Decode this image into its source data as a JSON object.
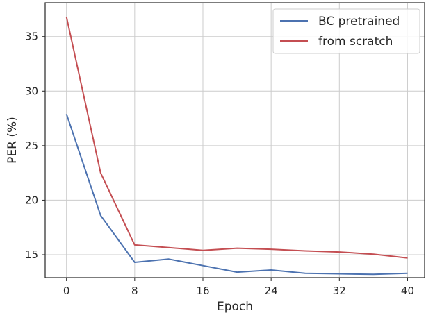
{
  "chart_data": {
    "type": "line",
    "title": "",
    "xlabel": "Epoch",
    "ylabel": "PER (%)",
    "xlim": [
      -2.5,
      42
    ],
    "ylim": [
      12.9,
      38.1
    ],
    "xticks": [
      0,
      8,
      16,
      24,
      32,
      40
    ],
    "yticks": [
      15,
      20,
      25,
      30,
      35
    ],
    "x_tick_labels": [
      "0",
      "8",
      "16",
      "24",
      "32",
      "40"
    ],
    "y_tick_labels": [
      "15",
      "20",
      "25",
      "30",
      "35"
    ],
    "grid": true,
    "legend_position": "top-right",
    "series": [
      {
        "name": "BC pretrained",
        "color": "#4c72b0",
        "x": [
          0,
          4,
          8,
          12,
          16,
          20,
          24,
          28,
          32,
          36,
          40
        ],
        "y": [
          27.9,
          18.6,
          14.3,
          14.6,
          14.0,
          13.4,
          13.6,
          13.3,
          13.25,
          13.2,
          13.3
        ]
      },
      {
        "name": "from scratch",
        "color": "#c44e52",
        "x": [
          0,
          4,
          8,
          12,
          16,
          20,
          24,
          28,
          32,
          36,
          40
        ],
        "y": [
          36.8,
          22.5,
          15.9,
          15.65,
          15.4,
          15.6,
          15.5,
          15.35,
          15.25,
          15.05,
          14.7
        ]
      }
    ]
  }
}
